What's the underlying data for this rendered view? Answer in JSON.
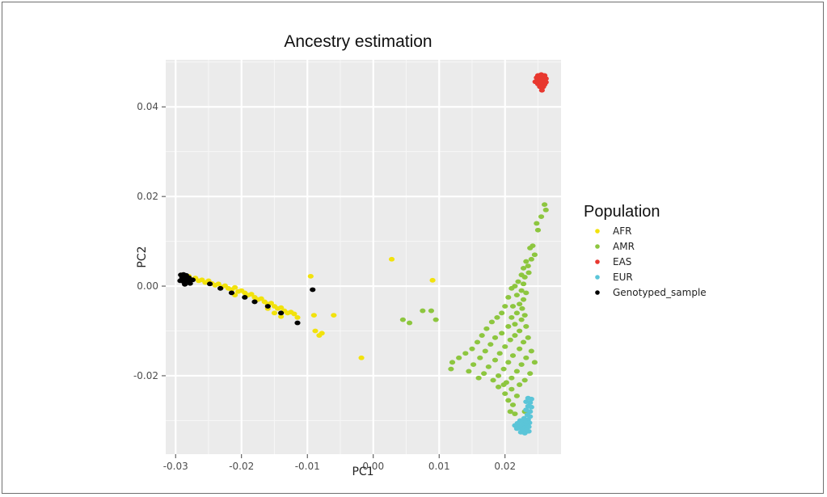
{
  "chart_data": {
    "type": "scatter",
    "title": "Ancestry estimation",
    "xlabel": "PC1",
    "ylabel": "PC2",
    "xlim": [
      -0.0315,
      0.0285
    ],
    "ylim": [
      -0.0375,
      0.0505
    ],
    "xticks": [
      -0.03,
      -0.02,
      -0.01,
      0.0,
      0.01,
      0.02
    ],
    "xtick_labels": [
      "-0.03",
      "-0.02",
      "-0.01",
      "0.00",
      "0.01",
      "0.02"
    ],
    "yticks": [
      -0.02,
      0.0,
      0.02,
      0.04
    ],
    "ytick_labels": [
      "-0.02",
      "0.00",
      "0.02",
      "0.04"
    ],
    "grid": true,
    "background": "#ebebeb",
    "legend": {
      "title": "Population",
      "position": "right"
    },
    "series": [
      {
        "name": "AFR",
        "color": "#f2e20c",
        "points": [
          [
            -0.029,
            0.0025
          ],
          [
            -0.0285,
            0.0018
          ],
          [
            -0.028,
            0.0022
          ],
          [
            -0.0275,
            0.0015
          ],
          [
            -0.027,
            0.0018
          ],
          [
            -0.0265,
            0.0012
          ],
          [
            -0.026,
            0.0014
          ],
          [
            -0.0255,
            0.0008
          ],
          [
            -0.025,
            0.0012
          ],
          [
            -0.0245,
            0.0006
          ],
          [
            -0.024,
            0.0002
          ],
          [
            -0.0235,
            0.0005
          ],
          [
            -0.023,
            -0.0002
          ],
          [
            -0.0225,
            0.0001
          ],
          [
            -0.022,
            -0.0005
          ],
          [
            -0.0215,
            -0.0008
          ],
          [
            -0.021,
            -0.0003
          ],
          [
            -0.0205,
            -0.0012
          ],
          [
            -0.02,
            -0.001
          ],
          [
            -0.0195,
            -0.0015
          ],
          [
            -0.019,
            -0.002
          ],
          [
            -0.0185,
            -0.0018
          ],
          [
            -0.018,
            -0.0025
          ],
          [
            -0.0175,
            -0.003
          ],
          [
            -0.017,
            -0.0028
          ],
          [
            -0.0165,
            -0.0035
          ],
          [
            -0.016,
            -0.004
          ],
          [
            -0.0155,
            -0.0038
          ],
          [
            -0.015,
            -0.0045
          ],
          [
            -0.0145,
            -0.005
          ],
          [
            -0.014,
            -0.0048
          ],
          [
            -0.0135,
            -0.0055
          ],
          [
            -0.013,
            -0.006
          ],
          [
            -0.0125,
            -0.0058
          ],
          [
            -0.012,
            -0.0062
          ],
          [
            -0.0115,
            -0.007
          ],
          [
            -0.015,
            -0.006
          ],
          [
            -0.016,
            -0.005
          ],
          [
            -0.014,
            -0.0068
          ],
          [
            -0.021,
            -0.002
          ],
          [
            -0.0095,
            0.0022
          ],
          [
            -0.009,
            -0.0065
          ],
          [
            -0.0088,
            -0.01
          ],
          [
            -0.0082,
            -0.011
          ],
          [
            -0.0078,
            -0.0105
          ],
          [
            -0.006,
            -0.0065
          ],
          [
            -0.0018,
            -0.016
          ],
          [
            0.0028,
            0.006
          ],
          [
            0.009,
            0.0013
          ]
        ]
      },
      {
        "name": "AMR",
        "color": "#8dc63f",
        "points": [
          [
            0.026,
            0.0182
          ],
          [
            0.0262,
            0.017
          ],
          [
            0.0255,
            0.0155
          ],
          [
            0.0248,
            0.014
          ],
          [
            0.025,
            0.0125
          ],
          [
            0.0242,
            0.009
          ],
          [
            0.0238,
            0.0085
          ],
          [
            0.0245,
            0.007
          ],
          [
            0.024,
            0.006
          ],
          [
            0.0232,
            0.0055
          ],
          [
            0.0235,
            0.0045
          ],
          [
            0.0228,
            0.004
          ],
          [
            0.0236,
            0.003
          ],
          [
            0.0225,
            0.0025
          ],
          [
            0.023,
            0.002
          ],
          [
            0.022,
            0.001
          ],
          [
            0.0228,
            0.0005
          ],
          [
            0.0215,
            0.0
          ],
          [
            0.0225,
            -0.001
          ],
          [
            0.021,
            -0.0005
          ],
          [
            0.0232,
            -0.0015
          ],
          [
            0.0218,
            -0.002
          ],
          [
            0.0228,
            -0.003
          ],
          [
            0.0205,
            -0.0025
          ],
          [
            0.0222,
            -0.004
          ],
          [
            0.0212,
            -0.0045
          ],
          [
            0.0226,
            -0.005
          ],
          [
            0.02,
            -0.0045
          ],
          [
            0.0218,
            -0.006
          ],
          [
            0.023,
            -0.0065
          ],
          [
            0.0195,
            -0.006
          ],
          [
            0.021,
            -0.007
          ],
          [
            0.0225,
            -0.0075
          ],
          [
            0.0188,
            -0.007
          ],
          [
            0.0215,
            -0.0085
          ],
          [
            0.0232,
            -0.009
          ],
          [
            0.018,
            -0.008
          ],
          [
            0.0205,
            -0.009
          ],
          [
            0.0222,
            -0.01
          ],
          [
            0.0172,
            -0.0095
          ],
          [
            0.0195,
            -0.0105
          ],
          [
            0.0215,
            -0.011
          ],
          [
            0.0235,
            -0.0115
          ],
          [
            0.0165,
            -0.011
          ],
          [
            0.0185,
            -0.0115
          ],
          [
            0.0208,
            -0.012
          ],
          [
            0.0228,
            -0.0125
          ],
          [
            0.0158,
            -0.0125
          ],
          [
            0.0178,
            -0.013
          ],
          [
            0.02,
            -0.0135
          ],
          [
            0.0222,
            -0.014
          ],
          [
            0.024,
            -0.0145
          ],
          [
            0.015,
            -0.014
          ],
          [
            0.017,
            -0.0145
          ],
          [
            0.0192,
            -0.015
          ],
          [
            0.0212,
            -0.0155
          ],
          [
            0.0232,
            -0.016
          ],
          [
            0.014,
            -0.015
          ],
          [
            0.0162,
            -0.016
          ],
          [
            0.0185,
            -0.0165
          ],
          [
            0.0205,
            -0.017
          ],
          [
            0.0225,
            -0.0175
          ],
          [
            0.0245,
            -0.017
          ],
          [
            0.013,
            -0.016
          ],
          [
            0.0152,
            -0.0175
          ],
          [
            0.0175,
            -0.018
          ],
          [
            0.0198,
            -0.0185
          ],
          [
            0.0218,
            -0.019
          ],
          [
            0.0238,
            -0.0195
          ],
          [
            0.012,
            -0.017
          ],
          [
            0.0145,
            -0.019
          ],
          [
            0.0168,
            -0.0195
          ],
          [
            0.019,
            -0.02
          ],
          [
            0.021,
            -0.0205
          ],
          [
            0.023,
            -0.021
          ],
          [
            0.0118,
            -0.0185
          ],
          [
            0.016,
            -0.0205
          ],
          [
            0.0182,
            -0.021
          ],
          [
            0.0202,
            -0.0215
          ],
          [
            0.0222,
            -0.022
          ],
          [
            0.019,
            -0.0225
          ],
          [
            0.021,
            -0.023
          ],
          [
            0.02,
            -0.024
          ],
          [
            0.0218,
            -0.0245
          ],
          [
            0.0205,
            -0.0255
          ],
          [
            0.0212,
            -0.0265
          ],
          [
            0.0208,
            -0.028
          ],
          [
            0.0215,
            -0.0285
          ],
          [
            0.023,
            -0.028
          ],
          [
            0.0198,
            -0.022
          ],
          [
            0.0045,
            -0.0075
          ],
          [
            0.0055,
            -0.0082
          ],
          [
            0.0088,
            -0.0055
          ],
          [
            0.0095,
            -0.0075
          ],
          [
            0.0075,
            -0.0055
          ]
        ]
      },
      {
        "name": "EAS",
        "color": "#e8382f",
        "points": [
          [
            0.025,
            0.047
          ],
          [
            0.0255,
            0.0472
          ],
          [
            0.026,
            0.047
          ],
          [
            0.0248,
            0.0465
          ],
          [
            0.0253,
            0.0466
          ],
          [
            0.0258,
            0.0465
          ],
          [
            0.0262,
            0.0463
          ],
          [
            0.025,
            0.046
          ],
          [
            0.0255,
            0.0461
          ],
          [
            0.026,
            0.0459
          ],
          [
            0.0246,
            0.0456
          ],
          [
            0.0252,
            0.0456
          ],
          [
            0.0257,
            0.0455
          ],
          [
            0.0262,
            0.0455
          ],
          [
            0.025,
            0.0451
          ],
          [
            0.0255,
            0.045
          ],
          [
            0.026,
            0.045
          ],
          [
            0.0253,
            0.0445
          ],
          [
            0.0258,
            0.0445
          ],
          [
            0.0256,
            0.0437
          ]
        ]
      },
      {
        "name": "EUR",
        "color": "#5bc5d8",
        "points": [
          [
            0.0235,
            -0.025
          ],
          [
            0.024,
            -0.0252
          ],
          [
            0.0232,
            -0.0258
          ],
          [
            0.0238,
            -0.026
          ],
          [
            0.0235,
            -0.0268
          ],
          [
            0.024,
            -0.027
          ],
          [
            0.0232,
            -0.0276
          ],
          [
            0.0238,
            -0.028
          ],
          [
            0.0234,
            -0.0287
          ],
          [
            0.0238,
            -0.0291
          ],
          [
            0.0229,
            -0.0295
          ],
          [
            0.0235,
            -0.0298
          ],
          [
            0.0223,
            -0.03
          ],
          [
            0.023,
            -0.0303
          ],
          [
            0.0237,
            -0.0305
          ],
          [
            0.0219,
            -0.0306
          ],
          [
            0.0226,
            -0.0309
          ],
          [
            0.0233,
            -0.0311
          ],
          [
            0.0215,
            -0.0311
          ],
          [
            0.0222,
            -0.0314
          ],
          [
            0.023,
            -0.0316
          ],
          [
            0.0236,
            -0.0314
          ],
          [
            0.0218,
            -0.0318
          ],
          [
            0.0226,
            -0.032
          ],
          [
            0.0233,
            -0.0322
          ],
          [
            0.0224,
            -0.0326
          ],
          [
            0.023,
            -0.0328
          ],
          [
            0.0236,
            -0.0324
          ]
        ]
      },
      {
        "name": "Genotyped_sample",
        "color": "#000000",
        "points": [
          [
            -0.0292,
            0.0025
          ],
          [
            -0.0288,
            0.0026
          ],
          [
            -0.0284,
            0.0024
          ],
          [
            -0.029,
            0.0018
          ],
          [
            -0.0285,
            0.0017
          ],
          [
            -0.028,
            0.0019
          ],
          [
            -0.0293,
            0.0012
          ],
          [
            -0.0288,
            0.001
          ],
          [
            -0.0282,
            0.0012
          ],
          [
            -0.0286,
            0.0004
          ],
          [
            -0.0278,
            0.0006
          ],
          [
            -0.0274,
            0.0014
          ],
          [
            -0.0248,
            0.0005
          ],
          [
            -0.0232,
            -0.0005
          ],
          [
            -0.0215,
            -0.0015
          ],
          [
            -0.0195,
            -0.0025
          ],
          [
            -0.018,
            -0.0035
          ],
          [
            -0.016,
            -0.0045
          ],
          [
            -0.014,
            -0.006
          ],
          [
            -0.0115,
            -0.0082
          ],
          [
            -0.0092,
            -0.0008
          ]
        ]
      }
    ]
  }
}
